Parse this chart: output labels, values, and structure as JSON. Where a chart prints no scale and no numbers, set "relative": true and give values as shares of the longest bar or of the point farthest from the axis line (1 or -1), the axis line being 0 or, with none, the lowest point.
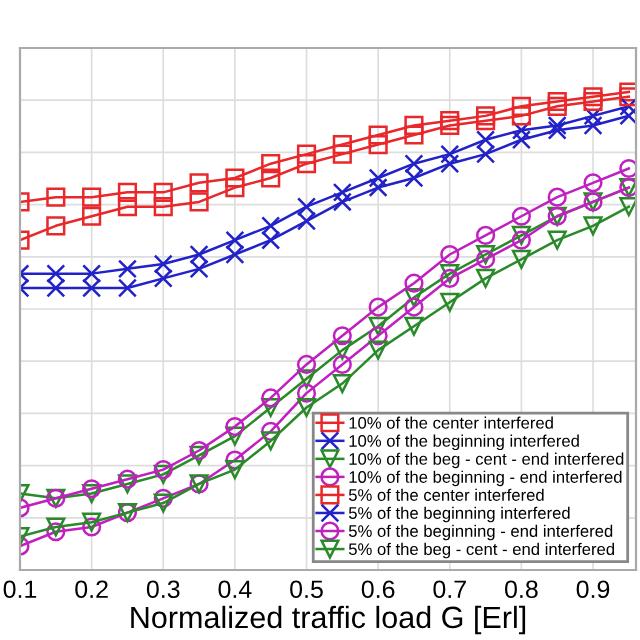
{
  "chart_data": {
    "type": "line",
    "xlabel": "Normalized traffic load G [Erl]",
    "relative": true,
    "x": [
      0.1,
      0.15,
      0.2,
      0.25,
      0.3,
      0.35,
      0.4,
      0.45,
      0.5,
      0.55,
      0.6,
      0.65,
      0.7,
      0.75,
      0.8,
      0.85,
      0.9,
      0.95
    ],
    "xlim": [
      0.1,
      0.96
    ],
    "xticks": [
      0.1,
      0.2,
      0.3,
      0.4,
      0.5,
      0.6,
      0.7,
      0.8,
      0.9
    ],
    "grid": true,
    "legend": "bottom right",
    "line_style": "solid",
    "series": [
      {
        "name": "10% of the center interfered",
        "color": "#e8282a",
        "marker": "square",
        "values": [
          0.77,
          0.78,
          0.78,
          0.79,
          0.79,
          0.81,
          0.82,
          0.85,
          0.87,
          0.89,
          0.91,
          0.93,
          0.94,
          0.95,
          0.97,
          0.98,
          0.99,
          1.0
        ]
      },
      {
        "name": "10% of the beginning interfered",
        "color": "#2222c8",
        "marker": "cross",
        "values": [
          0.62,
          0.62,
          0.62,
          0.63,
          0.64,
          0.66,
          0.69,
          0.72,
          0.76,
          0.79,
          0.82,
          0.85,
          0.87,
          0.9,
          0.92,
          0.93,
          0.95,
          0.97
        ]
      },
      {
        "name": "10% of the beg - cent - end interfered",
        "color": "#2a8a2a",
        "marker": "triangle",
        "values": [
          0.16,
          0.15,
          0.16,
          0.18,
          0.2,
          0.24,
          0.28,
          0.34,
          0.4,
          0.46,
          0.51,
          0.57,
          0.62,
          0.66,
          0.7,
          0.74,
          0.77,
          0.8
        ]
      },
      {
        "name": "10% of the beginning - end interfered",
        "color": "#c020c0",
        "marker": "circle",
        "values": [
          0.13,
          0.15,
          0.17,
          0.19,
          0.21,
          0.25,
          0.3,
          0.36,
          0.43,
          0.49,
          0.55,
          0.6,
          0.66,
          0.7,
          0.74,
          0.78,
          0.81,
          0.84
        ]
      },
      {
        "name": "5% of the center interfered",
        "color": "#e8282a",
        "marker": "square",
        "values": [
          0.69,
          0.72,
          0.74,
          0.76,
          0.76,
          0.77,
          0.8,
          0.82,
          0.85,
          0.87,
          0.89,
          0.91,
          0.93,
          0.94,
          0.95,
          0.97,
          0.98,
          0.99
        ]
      },
      {
        "name": "5% of the beginning interfered",
        "color": "#2222c8",
        "marker": "cross",
        "values": [
          0.59,
          0.59,
          0.59,
          0.59,
          0.61,
          0.63,
          0.66,
          0.69,
          0.73,
          0.77,
          0.8,
          0.82,
          0.85,
          0.87,
          0.9,
          0.92,
          0.93,
          0.95
        ]
      },
      {
        "name": "5% of the beginning - end interfered",
        "color": "#c020c0",
        "marker": "circle",
        "values": [
          0.05,
          0.08,
          0.09,
          0.12,
          0.15,
          0.18,
          0.23,
          0.29,
          0.37,
          0.43,
          0.49,
          0.55,
          0.61,
          0.65,
          0.69,
          0.74,
          0.77,
          0.8
        ]
      },
      {
        "name": "5% of the beg - cent - end interfered",
        "color": "#2a8a2a",
        "marker": "triangle",
        "values": [
          0.07,
          0.09,
          0.1,
          0.12,
          0.14,
          0.18,
          0.21,
          0.27,
          0.34,
          0.39,
          0.46,
          0.51,
          0.56,
          0.61,
          0.65,
          0.69,
          0.72,
          0.76
        ]
      }
    ]
  }
}
